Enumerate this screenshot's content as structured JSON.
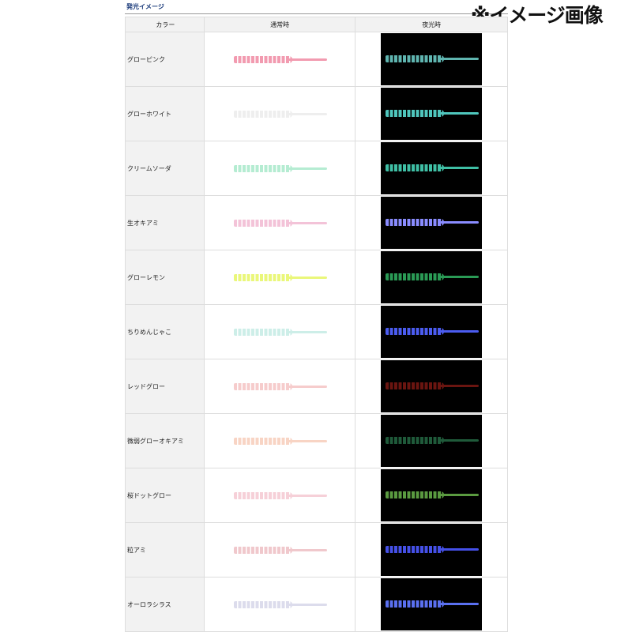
{
  "title": "発光イメージ",
  "note": "※イメージ画像",
  "headers": [
    "カラー",
    "通常時",
    "夜光時"
  ],
  "rows": [
    {
      "name": "グローピンク",
      "normal": "#f29bb0",
      "glow": "#5fb5b0"
    },
    {
      "name": "グローホワイト",
      "normal": "#eeeeee",
      "glow": "#4fc6bd"
    },
    {
      "name": "クリームソーダ",
      "normal": "#b5ecd2",
      "glow": "#3fbfa5"
    },
    {
      "name": "生オキアミ",
      "normal": "#f3c3d8",
      "glow": "#8a8cff"
    },
    {
      "name": "グローレモン",
      "normal": "#eaf77a",
      "glow": "#2a9a55"
    },
    {
      "name": "ちりめんじゃこ",
      "normal": "#cdeee8",
      "glow": "#4b5cf0"
    },
    {
      "name": "レッドグロー",
      "normal": "#f6cccc",
      "glow": "#6a1510"
    },
    {
      "name": "微弱グローオキアミ",
      "normal": "#f8d4c4",
      "glow": "#1f5a3a"
    },
    {
      "name": "桜ドットグロー",
      "normal": "#f6d0d8",
      "glow": "#5a9a40"
    },
    {
      "name": "粒アミ",
      "normal": "#f0c8cc",
      "glow": "#4550e8"
    },
    {
      "name": "オーロラシラス",
      "normal": "#dcdcec",
      "glow": "#5a70f0"
    }
  ]
}
